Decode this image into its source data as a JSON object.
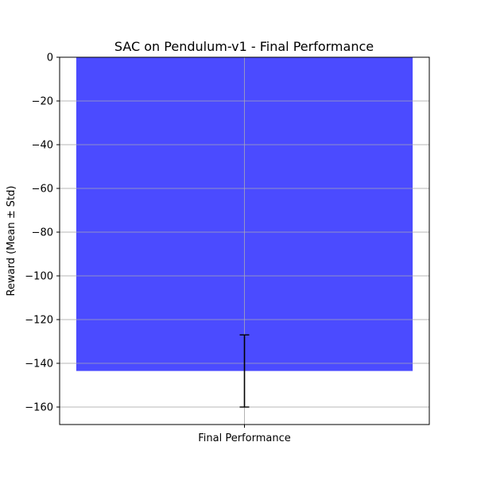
{
  "chart_data": {
    "type": "bar",
    "title": "SAC on Pendulum-v1 - Final Performance",
    "xlabel": "",
    "ylabel": "Reward (Mean ± Std)",
    "categories": [
      "Final Performance"
    ],
    "values": [
      -143.5
    ],
    "error": [
      16.5
    ],
    "ylim": [
      -168,
      0
    ],
    "yticks": [
      0,
      -20,
      -40,
      -60,
      -80,
      -100,
      -120,
      -140,
      -160
    ],
    "ytick_labels": [
      "0",
      "−20",
      "−40",
      "−60",
      "−80",
      "−100",
      "−120",
      "−140",
      "−160"
    ],
    "grid": true,
    "bar_color": "#4b4bff",
    "error_color": "#000000"
  }
}
